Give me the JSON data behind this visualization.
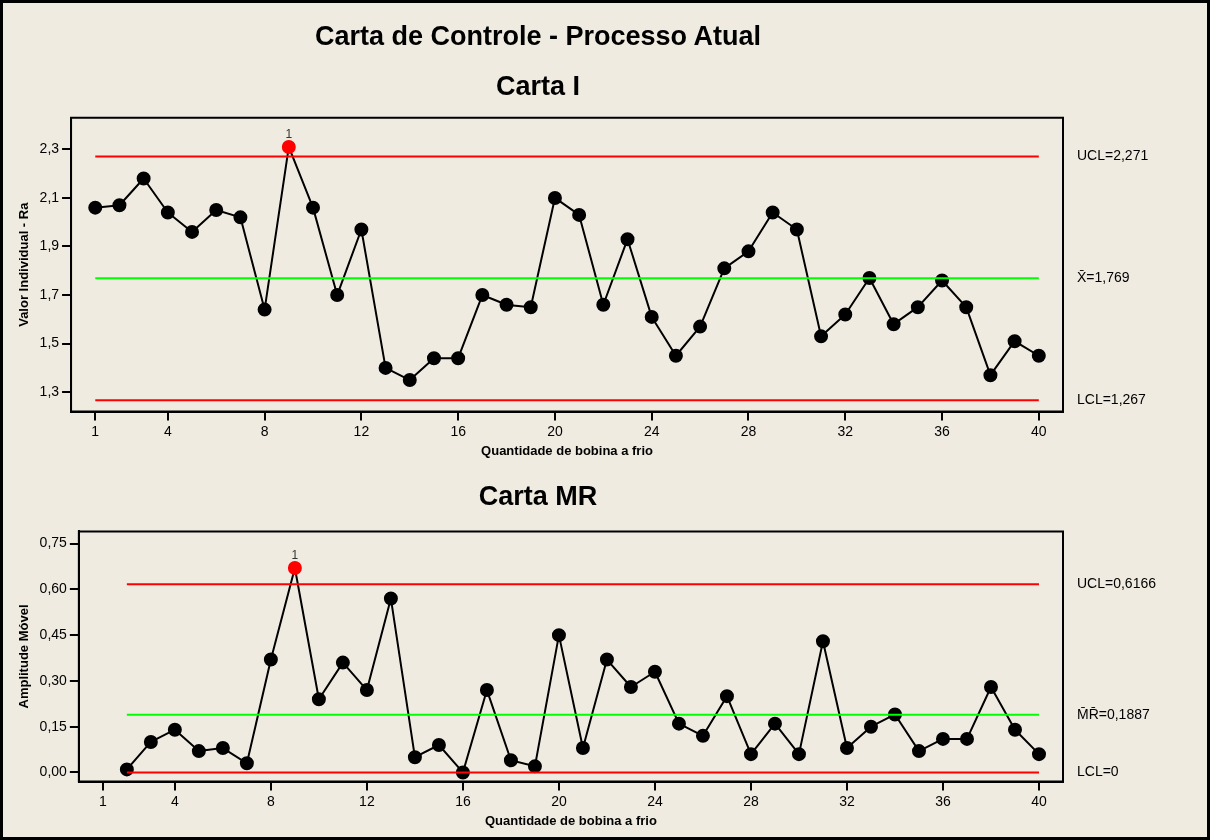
{
  "chart_data": [
    {
      "type": "line",
      "title": "Carta de Controle - Processo Atual",
      "subtitle": "Carta I",
      "xlabel": "Quantidade de bobina a frio",
      "ylabel": "Valor Individual - Ra",
      "xlim": [
        0,
        41
      ],
      "xticks": [
        1,
        4,
        8,
        12,
        16,
        20,
        24,
        28,
        32,
        36,
        40
      ],
      "ylim": [
        1.22,
        2.43
      ],
      "yticks": [
        {
          "value": 1.3,
          "label": "1,3"
        },
        {
          "value": 1.5,
          "label": "1,5"
        },
        {
          "value": 1.7,
          "label": "1,7"
        },
        {
          "value": 1.9,
          "label": "1,9"
        },
        {
          "value": 2.1,
          "label": "2,1"
        },
        {
          "value": 2.3,
          "label": "2,3"
        }
      ],
      "series": [
        {
          "color": "#000000",
          "x": [
            1,
            2,
            3,
            4,
            5,
            6,
            7,
            8,
            9,
            10,
            11,
            12,
            13,
            14,
            15,
            16,
            17,
            18,
            19,
            20,
            21,
            22,
            23,
            24,
            25,
            26,
            27,
            28,
            29,
            30,
            31,
            32,
            33,
            34,
            35,
            36,
            37,
            38,
            39,
            40
          ],
          "values": [
            2.06,
            2.07,
            2.18,
            2.04,
            1.96,
            2.05,
            2.02,
            1.64,
            2.31,
            2.06,
            1.7,
            1.97,
            1.4,
            1.35,
            1.44,
            1.44,
            1.7,
            1.66,
            1.65,
            2.1,
            2.03,
            1.66,
            1.93,
            1.61,
            1.45,
            1.57,
            1.81,
            1.88,
            2.04,
            1.97,
            1.53,
            1.62,
            1.77,
            1.58,
            1.65,
            1.76,
            1.65,
            1.37,
            1.51,
            1.45
          ],
          "colors": [
            "#000000",
            "#000000",
            "#000000",
            "#000000",
            "#000000",
            "#000000",
            "#000000",
            "#000000",
            "#ff0000",
            "#000000",
            "#000000",
            "#000000",
            "#000000",
            "#000000",
            "#000000",
            "#000000",
            "#000000",
            "#000000",
            "#000000",
            "#000000",
            "#000000",
            "#000000",
            "#000000",
            "#000000",
            "#000000",
            "#000000",
            "#000000",
            "#000000",
            "#000000",
            "#000000",
            "#000000",
            "#000000",
            "#000000",
            "#000000",
            "#000000",
            "#000000",
            "#000000",
            "#000000",
            "#000000",
            "#000000"
          ]
        }
      ],
      "ref_lines": [
        {
          "axis": "y",
          "value": 2.271,
          "label": "UCL=2,271",
          "color": "#ff0000"
        },
        {
          "axis": "y",
          "value": 1.769,
          "label": "X̄=1,769",
          "color": "#00ff00"
        },
        {
          "axis": "y",
          "value": 1.267,
          "label": "LCL=1,267",
          "color": "#ff0000"
        }
      ],
      "annotations": [
        {
          "text": "1",
          "x": 9,
          "y": 2.31
        }
      ],
      "marker": "circle",
      "line_style": "solid",
      "grid": false,
      "legend": false
    },
    {
      "type": "line",
      "title": "Carta MR",
      "xlabel": "Quantidade de bobina a frio",
      "ylabel": "Amplitude Móvel",
      "xlim": [
        0,
        41
      ],
      "xticks": [
        1,
        4,
        8,
        12,
        16,
        20,
        24,
        28,
        32,
        36,
        40
      ],
      "ylim": [
        -0.03,
        0.79
      ],
      "yticks": [
        {
          "value": 0,
          "label": "0,00"
        },
        {
          "value": 0.15,
          "label": "0,15"
        },
        {
          "value": 0.3,
          "label": "0,30"
        },
        {
          "value": 0.45,
          "label": "0,45"
        },
        {
          "value": 0.6,
          "label": "0,60"
        },
        {
          "value": 0.75,
          "label": "0,75"
        }
      ],
      "series": [
        {
          "color": "#000000",
          "x": [
            2,
            3,
            4,
            5,
            6,
            7,
            8,
            9,
            10,
            11,
            12,
            13,
            14,
            15,
            16,
            17,
            18,
            19,
            20,
            21,
            22,
            23,
            24,
            25,
            26,
            27,
            28,
            29,
            30,
            31,
            32,
            33,
            34,
            35,
            36,
            37,
            38,
            39,
            40
          ],
          "values": [
            0.01,
            0.1,
            0.14,
            0.07,
            0.08,
            0.03,
            0.37,
            0.67,
            0.24,
            0.36,
            0.27,
            0.57,
            0.05,
            0.09,
            0.0,
            0.27,
            0.04,
            0.02,
            0.45,
            0.08,
            0.37,
            0.28,
            0.33,
            0.16,
            0.12,
            0.25,
            0.06,
            0.16,
            0.06,
            0.43,
            0.08,
            0.15,
            0.19,
            0.07,
            0.11,
            0.11,
            0.28,
            0.14,
            0.06
          ],
          "colors": [
            "#000000",
            "#000000",
            "#000000",
            "#000000",
            "#000000",
            "#000000",
            "#000000",
            "#ff0000",
            "#000000",
            "#000000",
            "#000000",
            "#000000",
            "#000000",
            "#000000",
            "#000000",
            "#000000",
            "#000000",
            "#000000",
            "#000000",
            "#000000",
            "#000000",
            "#000000",
            "#000000",
            "#000000",
            "#000000",
            "#000000",
            "#000000",
            "#000000",
            "#000000",
            "#000000",
            "#000000",
            "#000000",
            "#000000",
            "#000000",
            "#000000",
            "#000000",
            "#000000",
            "#000000",
            "#000000"
          ]
        }
      ],
      "ref_lines": [
        {
          "axis": "y",
          "value": 0.6166,
          "label": "UCL=0,6166",
          "color": "#ff0000"
        },
        {
          "axis": "y",
          "value": 0.1887,
          "label": "M̄R̄=0,1887",
          "color": "#00ff00"
        },
        {
          "axis": "y",
          "value": 0,
          "label": "LCL=0",
          "color": "#ff0000"
        }
      ],
      "annotations": [
        {
          "text": "1",
          "x": 9,
          "y": 0.67
        }
      ],
      "marker": "circle",
      "line_style": "solid",
      "grid": false,
      "legend": false
    }
  ]
}
